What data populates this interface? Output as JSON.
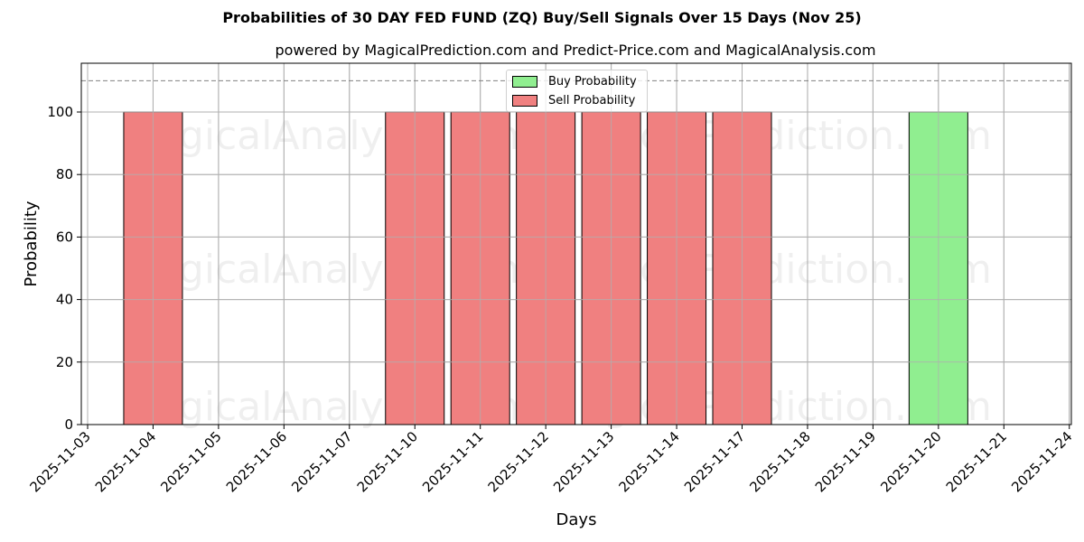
{
  "header": {
    "title": "Probabilities of 30 DAY FED FUND (ZQ) Buy/Sell Signals Over 15 Days (Nov 25)",
    "subtitle": "powered by MagicalPrediction.com and Predict-Price.com and MagicalAnalysis.com"
  },
  "legend": {
    "buy_label": "Buy Probability",
    "sell_label": "Sell Probability"
  },
  "colors": {
    "buy": "#90ee90",
    "sell": "#f08080",
    "grid": "#b0b0b0",
    "threshold": "#808080"
  },
  "watermarks": [
    "MagicalAnalysis.com",
    "MagicalPrediction.com"
  ],
  "chart_data": {
    "type": "bar",
    "title": "Probabilities of 30 DAY FED FUND (ZQ) Buy/Sell Signals Over 15 Days (Nov 25)",
    "subtitle": "powered by MagicalPrediction.com and Predict-Price.com and MagicalAnalysis.com",
    "xlabel": "Days",
    "ylabel": "Probability",
    "ylim": [
      0,
      115
    ],
    "yticks": [
      0,
      20,
      40,
      60,
      80,
      100
    ],
    "grid": true,
    "legend_position": "upper center",
    "threshold_line": {
      "y": 110,
      "style": "dashed",
      "color": "#808080"
    },
    "categories": [
      "2025-11-03",
      "2025-11-04",
      "2025-11-05",
      "2025-11-06",
      "2025-11-07",
      "2025-11-10",
      "2025-11-11",
      "2025-11-12",
      "2025-11-13",
      "2025-11-14",
      "2025-11-17",
      "2025-11-18",
      "2025-11-19",
      "2025-11-20",
      "2025-11-21",
      "2025-11-24"
    ],
    "series": [
      {
        "name": "Buy Probability",
        "color": "#90ee90",
        "values": [
          0,
          0,
          0,
          0,
          0,
          0,
          0,
          0,
          0,
          0,
          0,
          0,
          0,
          100,
          0,
          0
        ]
      },
      {
        "name": "Sell Probability",
        "color": "#f08080",
        "values": [
          0,
          100,
          0,
          0,
          0,
          100,
          100,
          100,
          100,
          100,
          100,
          0,
          0,
          0,
          0,
          0
        ]
      }
    ]
  }
}
